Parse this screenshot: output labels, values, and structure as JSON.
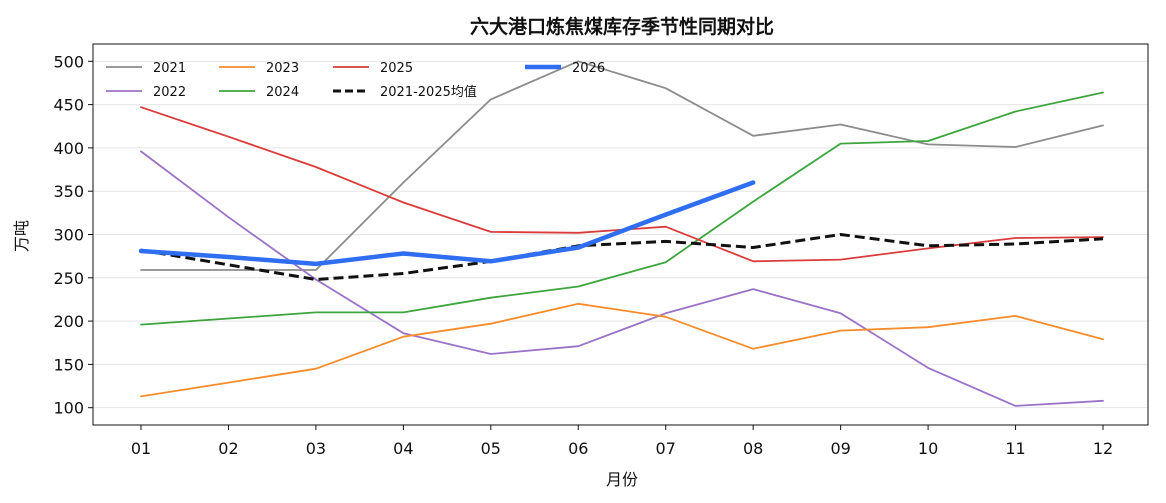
{
  "chart_data": {
    "type": "line",
    "title": "六大港口炼焦煤库存季节性同期对比",
    "xlabel": "月份",
    "ylabel": "万吨",
    "categories": [
      "01",
      "02",
      "03",
      "04",
      "05",
      "06",
      "07",
      "08",
      "09",
      "10",
      "11",
      "12"
    ],
    "ylim": [
      80,
      520
    ],
    "yticks": [
      100,
      150,
      200,
      250,
      300,
      350,
      400,
      450,
      500
    ],
    "grid": "horizontal",
    "legend_position": "top-left",
    "series": [
      {
        "name": "2021",
        "color": "#8c8c8c",
        "style": "solid",
        "width": "normal",
        "values": [
          259,
          259,
          259,
          360,
          456,
          500,
          469,
          414,
          427,
          404,
          401,
          426
        ]
      },
      {
        "name": "2022",
        "color": "#9b72c8",
        "style": "solid",
        "width": "normal",
        "values": [
          396,
          320,
          248,
          186,
          162,
          171,
          209,
          237,
          209,
          146,
          102,
          108
        ]
      },
      {
        "name": "2023",
        "color": "#f68c2b",
        "style": "solid",
        "width": "normal",
        "values": [
          113,
          129,
          145,
          182,
          197,
          220,
          205,
          168,
          189,
          193,
          206,
          179
        ]
      },
      {
        "name": "2024",
        "color": "#3da53d",
        "style": "solid",
        "width": "normal",
        "values": [
          196,
          203,
          210,
          210,
          227,
          240,
          268,
          338,
          405,
          408,
          442,
          464
        ]
      },
      {
        "name": "2025",
        "color": "#d93c3a",
        "style": "solid",
        "width": "normal",
        "values": [
          447,
          413,
          378,
          337,
          303,
          302,
          309,
          269,
          271,
          284,
          296,
          297
        ]
      },
      {
        "name": "2021-2025均值",
        "color": "#111111",
        "style": "dashed",
        "width": "bold",
        "values": [
          282,
          265,
          248,
          255,
          269,
          287,
          292,
          285,
          300,
          287,
          289,
          295
        ]
      },
      {
        "name": "2026",
        "color": "#2f6ef0",
        "style": "solid",
        "width": "thick",
        "values": [
          281,
          274,
          266,
          278,
          269,
          285,
          323,
          360,
          null,
          null,
          null,
          null
        ]
      }
    ]
  }
}
